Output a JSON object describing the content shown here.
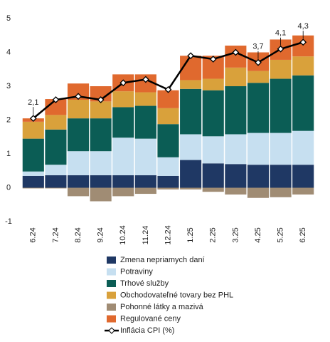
{
  "chart_data": {
    "type": "stacked-bar-line",
    "categories": [
      "6.24",
      "7.24",
      "8.24",
      "9.24",
      "10.24",
      "11.24",
      "12.24",
      "1.25",
      "2.25",
      "3.25",
      "4.25",
      "5.25",
      "6.25"
    ],
    "series": [
      {
        "name": "Zmena nepriamych daní",
        "color": "#1f3864",
        "values": [
          0.35,
          0.37,
          0.37,
          0.37,
          0.37,
          0.37,
          0.35,
          0.82,
          0.72,
          0.7,
          0.68,
          0.68,
          0.68
        ]
      },
      {
        "name": "Potraviny",
        "color": "#c6dff0",
        "values": [
          0.13,
          0.31,
          0.71,
          0.71,
          1.11,
          1.08,
          0.55,
          0.76,
          0.8,
          0.88,
          0.94,
          0.94,
          1.0
        ]
      },
      {
        "name": "Trhové služby",
        "color": "#0b5d55",
        "values": [
          0.97,
          1.04,
          0.97,
          0.97,
          0.9,
          0.97,
          0.98,
          1.34,
          1.36,
          1.42,
          1.48,
          1.6,
          1.64
        ]
      },
      {
        "name": "Obchodovateľné tovary bez PHL",
        "color": "#d9a13b",
        "values": [
          0.5,
          0.43,
          0.55,
          0.5,
          0.47,
          0.4,
          0.47,
          0.26,
          0.34,
          0.55,
          0.35,
          0.56,
          0.56
        ]
      },
      {
        "name": "Pohonné látky a mazivá",
        "color": "#a08c74",
        "values": [
          -0.02,
          -0.02,
          -0.25,
          -0.4,
          -0.25,
          -0.18,
          -0.05,
          -0.05,
          -0.12,
          -0.2,
          -0.3,
          -0.28,
          -0.2
        ]
      },
      {
        "name": "Regulované ceny",
        "color": "#e0692e",
        "values": [
          0.1,
          0.47,
          0.48,
          0.45,
          0.5,
          0.53,
          0.53,
          0.72,
          0.68,
          0.65,
          0.55,
          0.6,
          0.62
        ]
      },
      {
        "name": "Inflácia CPI (%)",
        "color": "#000000",
        "type": "line",
        "values": [
          2.05,
          2.6,
          2.7,
          2.6,
          3.1,
          3.2,
          2.9,
          3.9,
          3.8,
          4.0,
          3.7,
          4.1,
          4.3
        ],
        "value_labels": [
          "2,1",
          null,
          null,
          null,
          null,
          null,
          null,
          null,
          null,
          null,
          "3,7",
          "4,1",
          "4,3"
        ]
      }
    ],
    "ylim": [
      -1,
      5
    ],
    "yticks": [
      -1,
      0,
      1,
      2,
      3,
      4,
      5
    ],
    "grid": false
  }
}
